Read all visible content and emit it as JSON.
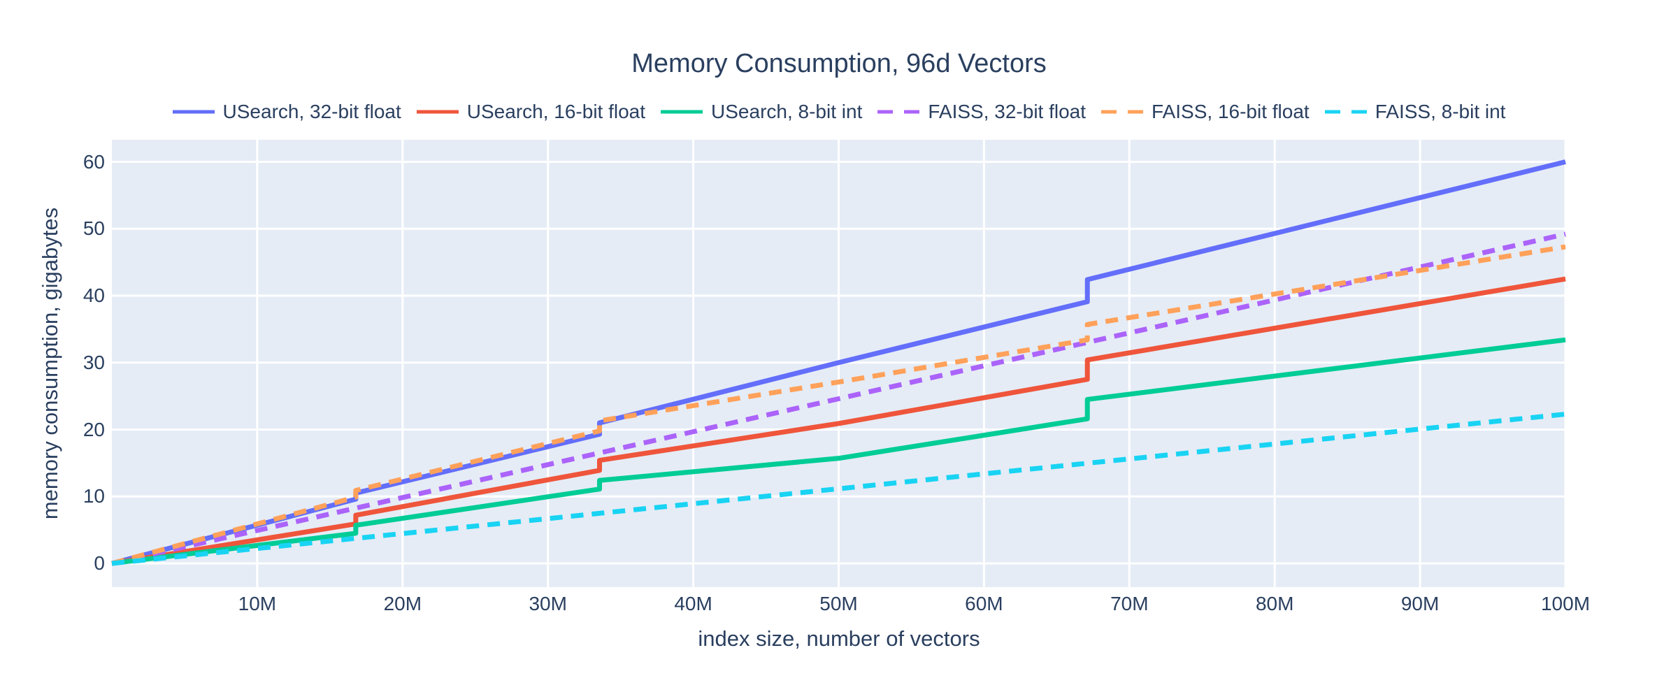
{
  "chart": {
    "title": "Memory Consumption, 96d Vectors",
    "xlabel": "index size, number of vectors",
    "ylabel": "memory consumption, gigabytes"
  },
  "colors": {
    "text": "#2a3f5f",
    "plot_background": "#e5ecf6",
    "gridline": "#ffffff",
    "paper_background": "#ffffff"
  },
  "chart_data": {
    "type": "line",
    "title": "Memory Consumption, 96d Vectors",
    "xlabel": "index size, number of vectors",
    "ylabel": "memory consumption, gigabytes",
    "x_unit": "millions of vectors",
    "y_unit": "gigabytes",
    "xlim": [
      0,
      100
    ],
    "ylim": [
      -3.3,
      63.3
    ],
    "grid": true,
    "legend_position": "top-center",
    "x_ticks": [
      {
        "value": 10,
        "label": "10M"
      },
      {
        "value": 20,
        "label": "20M"
      },
      {
        "value": 30,
        "label": "30M"
      },
      {
        "value": 40,
        "label": "40M"
      },
      {
        "value": 50,
        "label": "50M"
      },
      {
        "value": 60,
        "label": "60M"
      },
      {
        "value": 70,
        "label": "70M"
      },
      {
        "value": 80,
        "label": "80M"
      },
      {
        "value": 90,
        "label": "90M"
      },
      {
        "value": 100,
        "label": "100M"
      }
    ],
    "y_ticks": [
      {
        "value": 0,
        "label": "0"
      },
      {
        "value": 10,
        "label": "10"
      },
      {
        "value": 20,
        "label": "20"
      },
      {
        "value": 30,
        "label": "30"
      },
      {
        "value": 40,
        "label": "40"
      },
      {
        "value": 50,
        "label": "50"
      },
      {
        "value": 60,
        "label": "60"
      }
    ],
    "series": [
      {
        "name": "USearch, 32-bit float",
        "color": "#636EFA",
        "dash": "solid",
        "x": [
          0,
          16.78,
          16.78,
          33.55,
          33.55,
          50,
          67.11,
          67.11,
          100
        ],
        "y": [
          0,
          9.6,
          10.5,
          19.3,
          21.0,
          30.0,
          39.1,
          42.4,
          60.0
        ]
      },
      {
        "name": "USearch, 16-bit float",
        "color": "#EF553B",
        "dash": "solid",
        "x": [
          0,
          16.78,
          16.78,
          33.55,
          33.55,
          50,
          67.11,
          67.11,
          100
        ],
        "y": [
          0,
          5.9,
          7.2,
          13.9,
          15.4,
          20.9,
          27.5,
          30.4,
          42.5
        ]
      },
      {
        "name": "USearch, 8-bit int",
        "color": "#00CC96",
        "dash": "solid",
        "x": [
          0,
          16.78,
          16.78,
          33.55,
          33.55,
          50,
          67.11,
          67.11,
          100
        ],
        "y": [
          0,
          4.5,
          5.7,
          11.1,
          12.4,
          15.7,
          21.6,
          24.5,
          33.4
        ]
      },
      {
        "name": "FAISS, 32-bit float",
        "color": "#AB63FA",
        "dash": "dashed",
        "x": [
          0,
          100
        ],
        "y": [
          0,
          49.2
        ]
      },
      {
        "name": "FAISS, 16-bit float",
        "color": "#FFA15A",
        "dash": "dashed",
        "x": [
          0,
          16.78,
          16.78,
          33.55,
          33.55,
          50,
          67.11,
          67.11,
          100
        ],
        "y": [
          0,
          9.9,
          10.9,
          19.8,
          21.3,
          27.1,
          33.4,
          35.7,
          47.3
        ]
      },
      {
        "name": "FAISS, 8-bit int",
        "color": "#19D3F3",
        "dash": "dashed",
        "x": [
          0,
          100
        ],
        "y": [
          0,
          22.3
        ]
      }
    ]
  }
}
